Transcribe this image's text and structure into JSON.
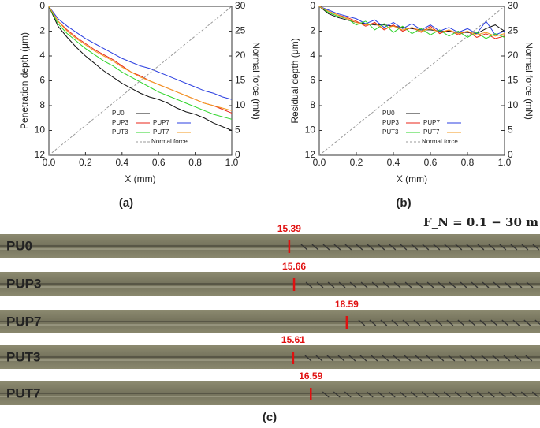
{
  "chart_data": [
    {
      "type": "line",
      "panel": "(a)",
      "xlabel": "X (mm)",
      "ylabel": "Penetration depth (μm)",
      "y2label": "Normal force (mN)",
      "x": [
        0,
        0.05,
        0.1,
        0.15,
        0.2,
        0.25,
        0.3,
        0.35,
        0.4,
        0.45,
        0.5,
        0.55,
        0.6,
        0.65,
        0.7,
        0.75,
        0.8,
        0.85,
        0.9,
        0.95,
        1.0
      ],
      "xlim": [
        0,
        1
      ],
      "xticks": [
        {
          "value": 0,
          "label": "0.0"
        },
        {
          "value": 0.2,
          "label": "0.2"
        },
        {
          "value": 0.4,
          "label": "0.4"
        },
        {
          "value": 0.6,
          "label": "0.6"
        },
        {
          "value": 0.8,
          "label": "0.8"
        },
        {
          "value": 1,
          "label": "1.0"
        }
      ],
      "ylim": [
        12,
        0
      ],
      "yticks": [
        0,
        2,
        4,
        6,
        8,
        10,
        12
      ],
      "y2lim": [
        0,
        30
      ],
      "y2ticks": [
        0,
        5,
        10,
        15,
        20,
        25,
        30
      ],
      "series": [
        {
          "name": "PU0",
          "color": "#111111",
          "values": [
            0,
            1.6,
            2.5,
            3.3,
            4.0,
            4.6,
            5.2,
            5.7,
            6.2,
            6.6,
            7.0,
            7.3,
            7.5,
            7.8,
            8.2,
            8.5,
            8.7,
            9.0,
            9.4,
            9.7,
            10.0
          ]
        },
        {
          "name": "PUP3",
          "color": "#e8261a",
          "values": [
            0,
            1.2,
            1.9,
            2.5,
            3.0,
            3.5,
            3.9,
            4.3,
            4.8,
            5.3,
            5.6,
            6.0,
            6.3,
            6.6,
            6.9,
            7.2,
            7.5,
            7.8,
            8.0,
            8.3,
            8.6
          ]
        },
        {
          "name": "PUP7",
          "color": "#2b3fe0",
          "values": [
            0,
            1.0,
            1.6,
            2.1,
            2.6,
            3.0,
            3.4,
            3.8,
            4.2,
            4.5,
            4.8,
            5.0,
            5.3,
            5.6,
            5.9,
            6.2,
            6.5,
            6.8,
            7.0,
            7.3,
            7.5
          ]
        },
        {
          "name": "PUT3",
          "color": "#2ed42a",
          "values": [
            0,
            1.4,
            2.2,
            2.8,
            3.4,
            3.9,
            4.4,
            4.8,
            5.3,
            5.7,
            6.1,
            6.5,
            6.9,
            7.2,
            7.5,
            7.8,
            8.1,
            8.4,
            8.7,
            8.9,
            9.1
          ]
        },
        {
          "name": "PUT7",
          "color": "#f39a1f",
          "values": [
            0,
            1.2,
            2.0,
            2.6,
            3.1,
            3.6,
            4.0,
            4.4,
            4.9,
            5.3,
            5.7,
            6.0,
            6.3,
            6.6,
            6.9,
            7.2,
            7.5,
            7.8,
            8.0,
            8.2,
            8.4
          ]
        },
        {
          "name": "Normal force",
          "color": "#999999",
          "style": "dashed",
          "axis": "y2",
          "values": [
            0,
            1.5,
            3,
            4.5,
            6,
            7.5,
            9,
            10.5,
            12,
            13.5,
            15,
            16.5,
            18,
            19.5,
            21,
            22.5,
            24,
            25.5,
            27,
            28.5,
            30
          ]
        }
      ]
    },
    {
      "type": "line",
      "panel": "(b)",
      "xlabel": "X (mm)",
      "ylabel": "Residual depth (μm)",
      "y2label": "Normal force (mN)",
      "x": [
        0,
        0.05,
        0.1,
        0.15,
        0.2,
        0.25,
        0.3,
        0.35,
        0.4,
        0.45,
        0.5,
        0.55,
        0.6,
        0.65,
        0.7,
        0.75,
        0.8,
        0.85,
        0.9,
        0.95,
        1.0
      ],
      "xlim": [
        0,
        1
      ],
      "xticks": [
        {
          "value": 0,
          "label": "0.0"
        },
        {
          "value": 0.2,
          "label": "0.2"
        },
        {
          "value": 0.4,
          "label": "0.4"
        },
        {
          "value": 0.6,
          "label": "0.6"
        },
        {
          "value": 0.8,
          "label": "0.8"
        },
        {
          "value": 1,
          "label": "1.0"
        }
      ],
      "ylim": [
        12,
        0
      ],
      "yticks": [
        0,
        2,
        4,
        6,
        8,
        10,
        12
      ],
      "y2lim": [
        0,
        30
      ],
      "y2ticks": [
        0,
        5,
        10,
        15,
        20,
        25,
        30
      ],
      "series": [
        {
          "name": "PU0",
          "color": "#111111",
          "values": [
            0,
            0.6,
            0.9,
            1.1,
            1.3,
            1.4,
            1.5,
            1.5,
            1.6,
            1.7,
            1.8,
            1.9,
            1.9,
            2.0,
            2.0,
            2.1,
            2.1,
            2.2,
            1.8,
            1.5,
            2.0
          ]
        },
        {
          "name": "PUP3",
          "color": "#e8261a",
          "values": [
            0,
            0.4,
            0.7,
            0.9,
            1.2,
            1.6,
            1.3,
            1.9,
            1.5,
            2.0,
            1.7,
            2.1,
            1.6,
            2.2,
            1.9,
            2.3,
            2.0,
            2.5,
            2.2,
            2.6,
            2.4
          ]
        },
        {
          "name": "PUP7",
          "color": "#2b3fe0",
          "values": [
            0,
            0.3,
            0.6,
            0.8,
            1.0,
            1.4,
            1.1,
            1.7,
            1.3,
            1.8,
            1.4,
            1.9,
            1.5,
            2.0,
            1.7,
            2.1,
            1.8,
            2.2,
            1.2,
            2.3,
            2.0
          ]
        },
        {
          "name": "PUT3",
          "color": "#2ed42a",
          "values": [
            0,
            0.5,
            0.8,
            1.0,
            1.5,
            1.2,
            1.9,
            1.4,
            2.1,
            1.6,
            2.2,
            1.8,
            2.3,
            1.9,
            2.4,
            2.0,
            2.5,
            2.1,
            2.6,
            2.2,
            2.5
          ]
        },
        {
          "name": "PUT7",
          "color": "#f39a1f",
          "values": [
            0,
            0.4,
            0.7,
            1.0,
            1.3,
            1.5,
            1.4,
            1.8,
            1.6,
            1.9,
            1.7,
            2.0,
            1.8,
            2.1,
            1.9,
            2.2,
            2.0,
            2.3,
            2.1,
            2.4,
            2.2
          ]
        },
        {
          "name": "Normal force",
          "color": "#999999",
          "style": "dashed",
          "axis": "y2",
          "values": [
            0,
            1.5,
            3,
            4.5,
            6,
            7.5,
            9,
            10.5,
            12,
            13.5,
            15,
            16.5,
            18,
            19.5,
            21,
            22.5,
            24,
            25.5,
            27,
            28.5,
            30
          ]
        }
      ]
    }
  ],
  "strips": {
    "panel": "(c)",
    "header": "F_N = 0.1 − 30 m",
    "rows": [
      {
        "label": "PU0",
        "value": 15.39
      },
      {
        "label": "PUP3",
        "value": 15.66
      },
      {
        "label": "PUP7",
        "value": 18.59
      },
      {
        "label": "PUT3",
        "value": 15.61
      },
      {
        "label": "PUT7",
        "value": 16.59
      }
    ]
  }
}
